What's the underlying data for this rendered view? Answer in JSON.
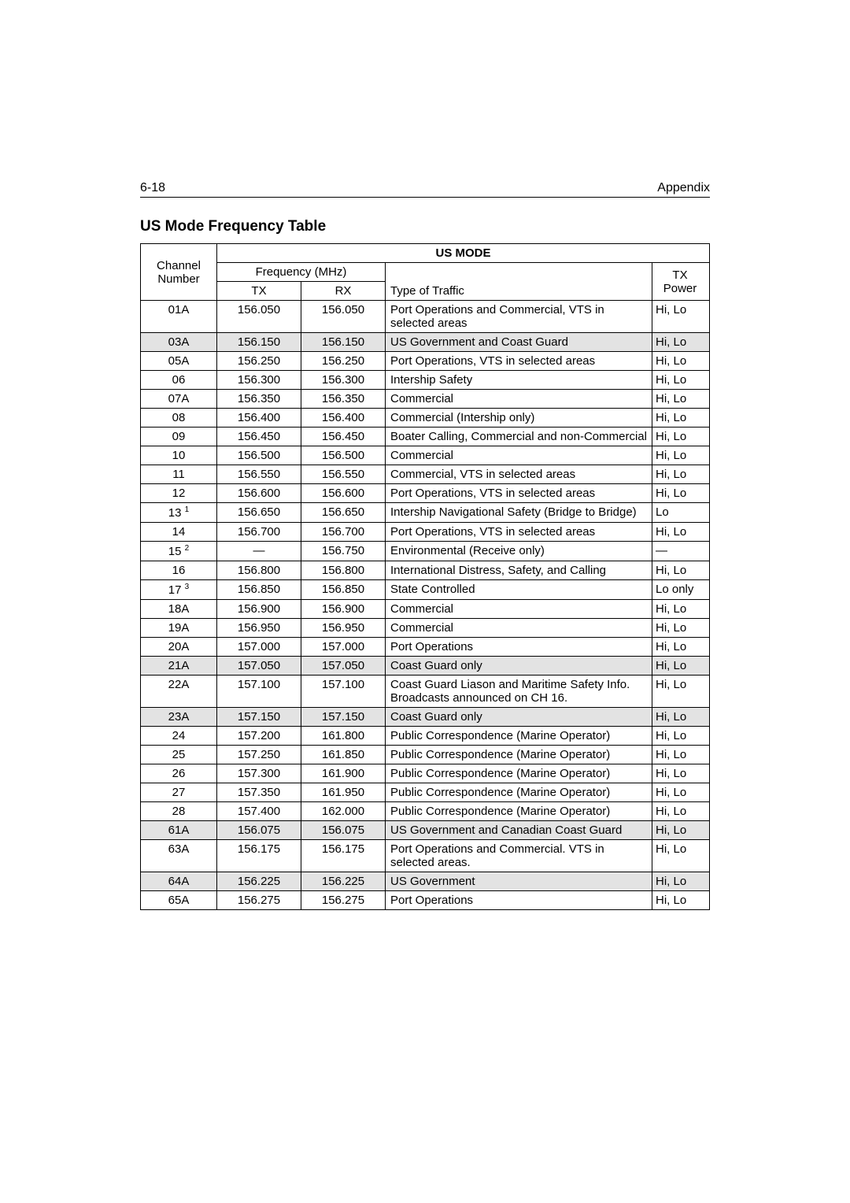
{
  "header": {
    "left": "6-18",
    "right": "Appendix"
  },
  "title": "US Mode Frequency Table",
  "table": {
    "mode_label": "US MODE",
    "headers": {
      "channel_line1": "Channel",
      "channel_line2": "Number",
      "freq_label": "Frequency (MHz)",
      "tx": "TX",
      "rx": "RX",
      "type": "Type of Traffic",
      "power_line1": "TX",
      "power_line2": "Power"
    },
    "rows": [
      {
        "ch": "01A",
        "sup": "",
        "tx": "156.050",
        "rx": "156.050",
        "type": "Port Operations and Commercial, VTS in selected areas",
        "power": "Hi, Lo",
        "shade": false
      },
      {
        "ch": "03A",
        "sup": "",
        "tx": "156.150",
        "rx": "156.150",
        "type": "US Government and Coast Guard",
        "power": "Hi, Lo",
        "shade": true
      },
      {
        "ch": "05A",
        "sup": "",
        "tx": "156.250",
        "rx": "156.250",
        "type": "Port Operations, VTS in selected areas",
        "power": "Hi, Lo",
        "shade": false
      },
      {
        "ch": "06",
        "sup": "",
        "tx": "156.300",
        "rx": "156.300",
        "type": "Intership Safety",
        "power": "Hi, Lo",
        "shade": false
      },
      {
        "ch": "07A",
        "sup": "",
        "tx": "156.350",
        "rx": "156.350",
        "type": "Commercial",
        "power": "Hi, Lo",
        "shade": false
      },
      {
        "ch": "08",
        "sup": "",
        "tx": "156.400",
        "rx": "156.400",
        "type": "Commercial (Intership only)",
        "power": "Hi, Lo",
        "shade": false
      },
      {
        "ch": "09",
        "sup": "",
        "tx": "156.450",
        "rx": "156.450",
        "type": "Boater Calling, Commercial and non-Commercial",
        "power": "Hi, Lo",
        "shade": false
      },
      {
        "ch": "10",
        "sup": "",
        "tx": "156.500",
        "rx": "156.500",
        "type": "Commercial",
        "power": "Hi, Lo",
        "shade": false
      },
      {
        "ch": "11",
        "sup": "",
        "tx": "156.550",
        "rx": "156.550",
        "type": "Commercial, VTS in selected areas",
        "power": "Hi, Lo",
        "shade": false
      },
      {
        "ch": "12",
        "sup": "",
        "tx": "156.600",
        "rx": "156.600",
        "type": "Port Operations, VTS in selected areas",
        "power": "Hi, Lo",
        "shade": false
      },
      {
        "ch": "13",
        "sup": "1",
        "tx": "156.650",
        "rx": "156.650",
        "type": "Intership Navigational Safety (Bridge to Bridge)",
        "power": "Lo",
        "shade": false
      },
      {
        "ch": "14",
        "sup": "",
        "tx": "156.700",
        "rx": "156.700",
        "type": "Port Operations, VTS in selected areas",
        "power": "Hi, Lo",
        "shade": false
      },
      {
        "ch": "15",
        "sup": "2",
        "tx": "—",
        "rx": "156.750",
        "type": "Environmental (Receive only)",
        "power": "—",
        "shade": false
      },
      {
        "ch": "16",
        "sup": "",
        "tx": "156.800",
        "rx": "156.800",
        "type": "International Distress, Safety, and Calling",
        "power": "Hi, Lo",
        "shade": false
      },
      {
        "ch": "17",
        "sup": "3",
        "tx": "156.850",
        "rx": "156.850",
        "type": "State Controlled",
        "power": "Lo only",
        "shade": false
      },
      {
        "ch": "18A",
        "sup": "",
        "tx": "156.900",
        "rx": "156.900",
        "type": "Commercial",
        "power": "Hi, Lo",
        "shade": false
      },
      {
        "ch": "19A",
        "sup": "",
        "tx": "156.950",
        "rx": "156.950",
        "type": "Commercial",
        "power": "Hi, Lo",
        "shade": false
      },
      {
        "ch": "20A",
        "sup": "",
        "tx": "157.000",
        "rx": "157.000",
        "type": "Port Operations",
        "power": "Hi, Lo",
        "shade": false
      },
      {
        "ch": "21A",
        "sup": "",
        "tx": "157.050",
        "rx": "157.050",
        "type": "Coast Guard only",
        "power": "Hi, Lo",
        "shade": true
      },
      {
        "ch": "22A",
        "sup": "",
        "tx": "157.100",
        "rx": "157.100",
        "type": "Coast Guard Liason and Maritime Safety Info. Broadcasts announced on CH 16.",
        "power": "Hi, Lo",
        "shade": false
      },
      {
        "ch": "23A",
        "sup": "",
        "tx": "157.150",
        "rx": "157.150",
        "type": "Coast Guard only",
        "power": "Hi, Lo",
        "shade": true
      },
      {
        "ch": "24",
        "sup": "",
        "tx": "157.200",
        "rx": "161.800",
        "type": "Public Correspondence (Marine Operator)",
        "power": "Hi, Lo",
        "shade": false
      },
      {
        "ch": "25",
        "sup": "",
        "tx": "157.250",
        "rx": "161.850",
        "type": "Public Correspondence (Marine Operator)",
        "power": "Hi, Lo",
        "shade": false
      },
      {
        "ch": "26",
        "sup": "",
        "tx": "157.300",
        "rx": "161.900",
        "type": "Public Correspondence (Marine Operator)",
        "power": "Hi, Lo",
        "shade": false
      },
      {
        "ch": "27",
        "sup": "",
        "tx": "157.350",
        "rx": "161.950",
        "type": "Public Correspondence (Marine Operator)",
        "power": "Hi, Lo",
        "shade": false
      },
      {
        "ch": "28",
        "sup": "",
        "tx": "157.400",
        "rx": "162.000",
        "type": "Public Correspondence (Marine Operator)",
        "power": "Hi, Lo",
        "shade": false
      },
      {
        "ch": "61A",
        "sup": "",
        "tx": "156.075",
        "rx": "156.075",
        "type": "US Government and Canadian Coast Guard",
        "power": "Hi, Lo",
        "shade": true
      },
      {
        "ch": "63A",
        "sup": "",
        "tx": "156.175",
        "rx": "156.175",
        "type": "Port Operations and Commercial. VTS in selected areas.",
        "power": "Hi, Lo",
        "shade": false
      },
      {
        "ch": "64A",
        "sup": "",
        "tx": "156.225",
        "rx": "156.225",
        "type": "US Government",
        "power": "Hi, Lo",
        "shade": true
      },
      {
        "ch": "65A",
        "sup": "",
        "tx": "156.275",
        "rx": "156.275",
        "type": "Port Operations",
        "power": "Hi, Lo",
        "shade": false
      }
    ]
  }
}
